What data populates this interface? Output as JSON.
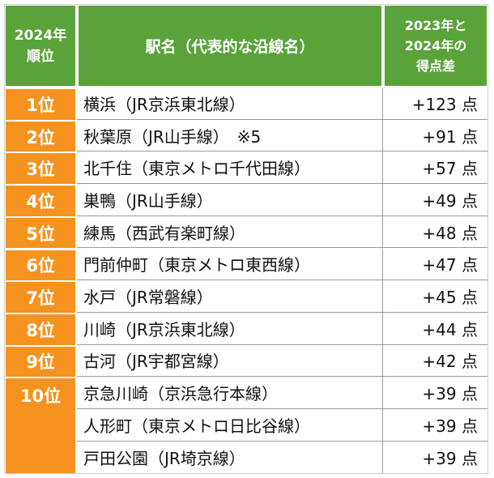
{
  "header": {
    "rank": "2024年\n順位",
    "station": "駅名（代表的な沿線名）",
    "diff": "2023年と\n2024年の\n得点差"
  },
  "rows": [
    {
      "rank": "1位",
      "station": "横浜（JR京浜東北線）",
      "diff": "+123 点"
    },
    {
      "rank": "2位",
      "station": "秋葉原（JR山手線）　※5",
      "diff": "+91 点"
    },
    {
      "rank": "3位",
      "station": "北千住（東京メトロ千代田線）",
      "diff": "+57 点"
    },
    {
      "rank": "4位",
      "station": "巣鴨（JR山手線）",
      "diff": "+49 点"
    },
    {
      "rank": "5位",
      "station": "練馬（西武有楽町線）",
      "diff": "+48 点"
    },
    {
      "rank": "6位",
      "station": "門前仲町（東京メトロ東西線）",
      "diff": "+47 点"
    },
    {
      "rank": "7位",
      "station": "水戸（JR常磐線）",
      "diff": "+45 点"
    },
    {
      "rank": "8位",
      "station": "川崎（JR京浜東北線）",
      "diff": "+44 点"
    },
    {
      "rank": "9位",
      "station": "古河（JR宇都宮線）",
      "diff": "+42 点"
    },
    {
      "rank": "10位",
      "station": "京急川崎（京浜急行本線）",
      "diff": "+39 点"
    },
    {
      "rank": "",
      "station": "人形町（東京メトロ日比谷線）",
      "diff": "+39 点"
    },
    {
      "rank": "",
      "station": "戸田公園（JR埼京線）",
      "diff": "+39 点"
    }
  ]
}
